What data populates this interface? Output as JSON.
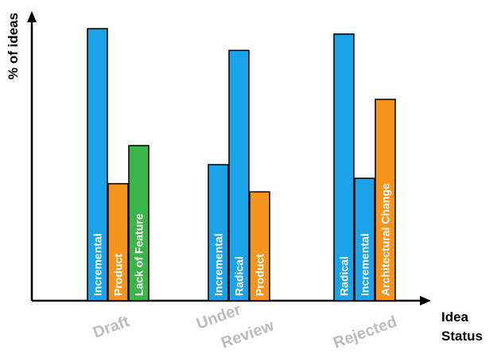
{
  "chart_data": {
    "type": "bar",
    "ylabel": "% of ideas",
    "xlabel_line1": "Idea",
    "xlabel_line2": "Status",
    "ylim": [
      0,
      100
    ],
    "groups": [
      {
        "name_lines": [
          "Draft"
        ],
        "bars": [
          {
            "label": "Incremental",
            "value": 100,
            "color": "#1aa3e8"
          },
          {
            "label": "Product",
            "value": 43,
            "color": "#f7941d"
          },
          {
            "label": "Lack of Feature",
            "value": 57,
            "color": "#39b54a"
          }
        ]
      },
      {
        "name_lines": [
          "Under",
          "Review"
        ],
        "bars": [
          {
            "label": "Incremental",
            "value": 50,
            "color": "#1aa3e8"
          },
          {
            "label": "Radical",
            "value": 92,
            "color": "#1aa3e8"
          },
          {
            "label": "Product",
            "value": 40,
            "color": "#f7941d"
          }
        ]
      },
      {
        "name_lines": [
          "Rejected"
        ],
        "bars": [
          {
            "label": "Radical",
            "value": 98,
            "color": "#1aa3e8"
          },
          {
            "label": "Incremental",
            "value": 45,
            "color": "#1aa3e8"
          },
          {
            "label": "Architectural Change",
            "value": 74,
            "color": "#f7941d"
          }
        ]
      }
    ],
    "grid": false,
    "legend": "none"
  }
}
